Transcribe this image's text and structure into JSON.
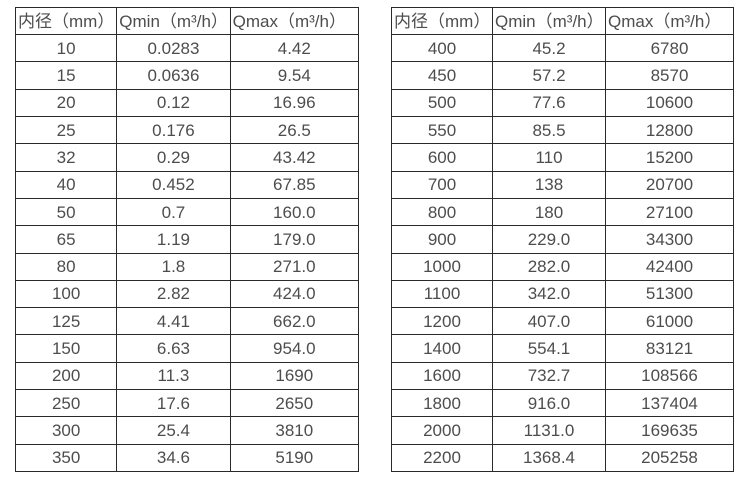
{
  "page_background": "#ffffff",
  "border_color": "#2a2a2a",
  "text_color": "#4d4d4d",
  "chart_data": [
    {
      "type": "table",
      "name": "flow-rate-table-small-diameters",
      "columns": [
        "内径（mm）",
        "Qmin（m³/h）",
        "Qmax（m³/h）"
      ],
      "rows": [
        [
          "10",
          "0.0283",
          "4.42"
        ],
        [
          "15",
          "0.0636",
          "9.54"
        ],
        [
          "20",
          "0.12",
          "16.96"
        ],
        [
          "25",
          "0.176",
          "26.5"
        ],
        [
          "32",
          "0.29",
          "43.42"
        ],
        [
          "40",
          "0.452",
          "67.85"
        ],
        [
          "50",
          "0.7",
          "160.0"
        ],
        [
          "65",
          "1.19",
          "179.0"
        ],
        [
          "80",
          "1.8",
          "271.0"
        ],
        [
          "100",
          "2.82",
          "424.0"
        ],
        [
          "125",
          "4.41",
          "662.0"
        ],
        [
          "150",
          "6.63",
          "954.0"
        ],
        [
          "200",
          "11.3",
          "1690"
        ],
        [
          "250",
          "17.6",
          "2650"
        ],
        [
          "300",
          "25.4",
          "3810"
        ],
        [
          "350",
          "34.6",
          "5190"
        ]
      ]
    },
    {
      "type": "table",
      "name": "flow-rate-table-large-diameters",
      "columns": [
        "内径（mm）",
        "Qmin（m³/h）",
        "Qmax（m³/h）"
      ],
      "rows": [
        [
          "400",
          "45.2",
          "6780"
        ],
        [
          "450",
          "57.2",
          "8570"
        ],
        [
          "500",
          "77.6",
          "10600"
        ],
        [
          "550",
          "85.5",
          "12800"
        ],
        [
          "600",
          "110",
          "15200"
        ],
        [
          "700",
          "138",
          "20700"
        ],
        [
          "800",
          "180",
          "27100"
        ],
        [
          "900",
          "229.0",
          "34300"
        ],
        [
          "1000",
          "282.0",
          "42400"
        ],
        [
          "1100",
          "342.0",
          "51300"
        ],
        [
          "1200",
          "407.0",
          "61000"
        ],
        [
          "1400",
          "554.1",
          "83121"
        ],
        [
          "1600",
          "732.7",
          "108566"
        ],
        [
          "1800",
          "916.0",
          "137404"
        ],
        [
          "2000",
          "1131.0",
          "169635"
        ],
        [
          "2200",
          "1368.4",
          "205258"
        ]
      ]
    }
  ]
}
